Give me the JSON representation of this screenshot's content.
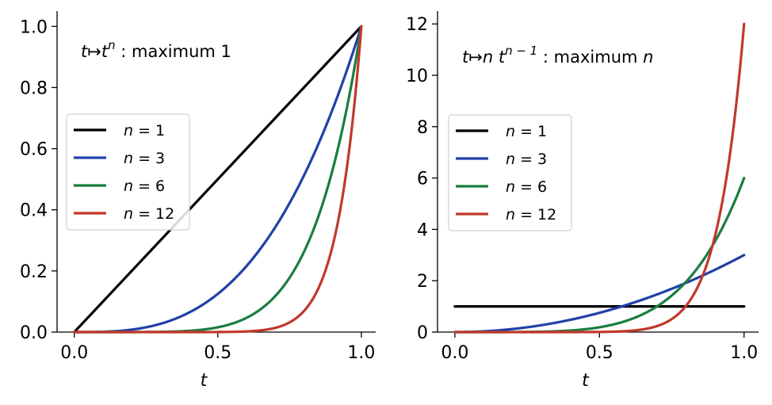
{
  "chart_data": [
    {
      "type": "line",
      "annotation": {
        "math": "t↦t",
        "sup": "n",
        "text": " : maximum 1"
      },
      "xlabel": "t",
      "xlim": [
        -0.06,
        1.05
      ],
      "ylim": [
        0,
        1.05
      ],
      "xticks": [
        0.0,
        0.5,
        1.0
      ],
      "xtick_labels": [
        "0.0",
        "0.5",
        "1.0"
      ],
      "yticks": [
        0.0,
        0.2,
        0.4,
        0.6,
        0.8,
        1.0
      ],
      "ytick_labels": [
        "0.0",
        "0.2",
        "0.4",
        "0.6",
        "0.8",
        "1.0"
      ],
      "function": "t^n",
      "legend_position": "center-left",
      "grid": false,
      "series": [
        {
          "name": "n = 1",
          "n": 1,
          "color": "#000000",
          "x": [
            0,
            0.1,
            0.2,
            0.3,
            0.4,
            0.5,
            0.6,
            0.7,
            0.8,
            0.9,
            1.0
          ],
          "y": [
            0,
            0.1,
            0.2,
            0.3,
            0.4,
            0.5,
            0.6,
            0.7,
            0.8,
            0.9,
            1.0
          ]
        },
        {
          "name": "n = 3",
          "n": 3,
          "color": "#2140a8",
          "x": [
            0,
            0.1,
            0.2,
            0.3,
            0.4,
            0.5,
            0.6,
            0.7,
            0.8,
            0.9,
            1.0
          ],
          "y": [
            0,
            0.001,
            0.008,
            0.027,
            0.064,
            0.125,
            0.216,
            0.343,
            0.512,
            0.729,
            1.0
          ]
        },
        {
          "name": "n = 6",
          "n": 6,
          "color": "#1a7d40",
          "x": [
            0,
            0.1,
            0.2,
            0.3,
            0.4,
            0.5,
            0.6,
            0.7,
            0.8,
            0.9,
            1.0
          ],
          "y": [
            0,
            0.0,
            0.0001,
            0.0007,
            0.0041,
            0.0156,
            0.0467,
            0.1176,
            0.2621,
            0.5314,
            1.0
          ]
        },
        {
          "name": "n = 12",
          "n": 12,
          "color": "#c0392b",
          "x": [
            0,
            0.1,
            0.2,
            0.3,
            0.4,
            0.5,
            0.6,
            0.7,
            0.8,
            0.9,
            1.0
          ],
          "y": [
            0,
            0.0,
            0.0,
            0.0,
            0.0,
            0.0002,
            0.0022,
            0.0138,
            0.0687,
            0.2824,
            1.0
          ]
        }
      ]
    },
    {
      "type": "line",
      "annotation": {
        "math": "t↦n t",
        "sup": "n − 1",
        "text": " : maximum ",
        "tail": "n"
      },
      "xlabel": "t",
      "xlim": [
        -0.06,
        1.05
      ],
      "ylim": [
        0,
        12.5
      ],
      "xticks": [
        0.0,
        0.5,
        1.0
      ],
      "xtick_labels": [
        "0.0",
        "0.5",
        "1.0"
      ],
      "yticks": [
        0,
        2,
        4,
        6,
        8,
        10,
        12
      ],
      "ytick_labels": [
        "0",
        "2",
        "4",
        "6",
        "8",
        "10",
        "12"
      ],
      "function": "n*t^(n-1)",
      "legend_position": "upper-left",
      "grid": false,
      "series": [
        {
          "name": "n = 1",
          "n": 1,
          "color": "#000000",
          "x": [
            0,
            0.1,
            0.2,
            0.3,
            0.4,
            0.5,
            0.6,
            0.7,
            0.8,
            0.9,
            1.0
          ],
          "y": [
            1,
            1,
            1,
            1,
            1,
            1,
            1,
            1,
            1,
            1,
            1
          ]
        },
        {
          "name": "n = 3",
          "n": 3,
          "color": "#2140a8",
          "x": [
            0,
            0.1,
            0.2,
            0.3,
            0.4,
            0.5,
            0.6,
            0.7,
            0.8,
            0.9,
            1.0
          ],
          "y": [
            0,
            0.03,
            0.12,
            0.27,
            0.48,
            0.75,
            1.08,
            1.47,
            1.92,
            2.43,
            3.0
          ]
        },
        {
          "name": "n = 6",
          "n": 6,
          "color": "#1a7d40",
          "x": [
            0,
            0.1,
            0.2,
            0.3,
            0.4,
            0.5,
            0.6,
            0.7,
            0.8,
            0.9,
            1.0
          ],
          "y": [
            0,
            0.0001,
            0.0019,
            0.0146,
            0.0614,
            0.1875,
            0.4666,
            1.0084,
            1.9661,
            3.5429,
            6.0
          ]
        },
        {
          "name": "n = 12",
          "n": 12,
          "color": "#c0392b",
          "x": [
            0,
            0.1,
            0.2,
            0.3,
            0.4,
            0.5,
            0.6,
            0.7,
            0.8,
            0.9,
            1.0
          ],
          "y": [
            0,
            0.0,
            0.0,
            0.0,
            0.0,
            0.0059,
            0.0435,
            0.2373,
            1.0308,
            3.7657,
            12.0
          ]
        }
      ]
    }
  ]
}
